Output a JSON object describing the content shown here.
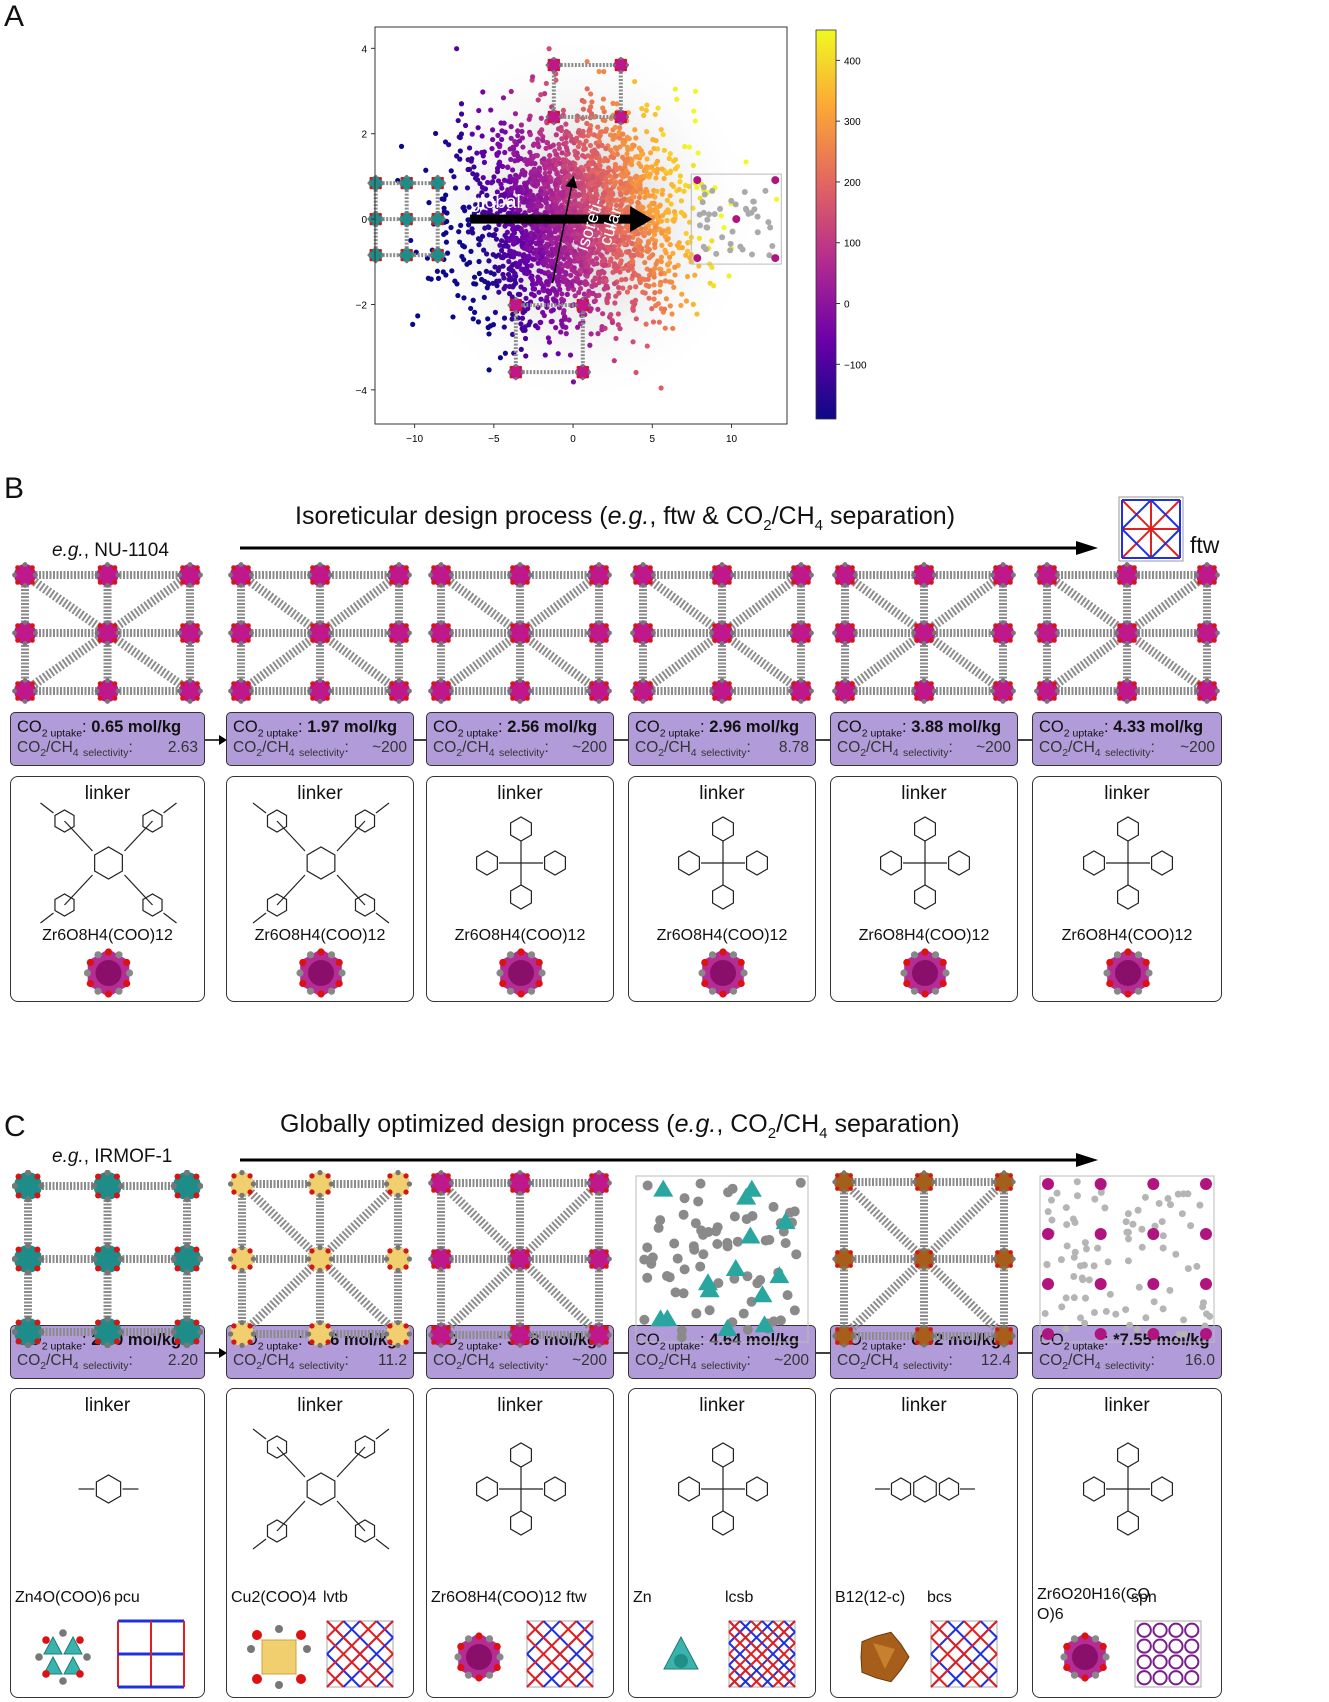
{
  "panel_a": {
    "letter": "A",
    "arrow_global": "global",
    "arrow_iso_1": "isoreti-",
    "arrow_iso_2": "cular",
    "chart_data": {
      "type": "scatter",
      "x_ticks": [
        "−10",
        "−5",
        "0",
        "5",
        "10"
      ],
      "y_ticks": [
        "4",
        "2",
        "0",
        "−2",
        "−4"
      ],
      "xlim": [
        -12.5,
        13.5
      ],
      "ylim": [
        -4.8,
        4.5
      ],
      "colorbar_ticks": [
        "400",
        "300",
        "200",
        "100",
        "0",
        "−100"
      ],
      "colorbar_range": [
        -190,
        450
      ],
      "colormap": "plasma",
      "grid": false
    }
  },
  "panel_b": {
    "letter": "B",
    "title_pre": "Isoreticular design process (",
    "title_eg": "e.g.",
    "title_mid": ", ftw & CO",
    "title_sub1": "2",
    "title_slash": "/CH",
    "title_sub2": "4",
    "title_post": " separation)",
    "example_eg": "e.g.",
    "example_name": ", NU-1104",
    "topology_label": "ftw",
    "boxes": [
      {
        "uptake": "0.65 mol/kg",
        "selectivity": "2.63"
      },
      {
        "uptake": "1.97 mol/kg",
        "selectivity": "~200"
      },
      {
        "uptake": "2.56 mol/kg",
        "selectivity": "~200"
      },
      {
        "uptake": "2.96 mol/kg",
        "selectivity": "8.78"
      },
      {
        "uptake": "3.88 mol/kg",
        "selectivity": "~200"
      },
      {
        "uptake": "4.33 mol/kg",
        "selectivity": "~200"
      }
    ],
    "cards": [
      {
        "linker": "linker",
        "node": "Zr6O8H4(COO)12"
      },
      {
        "linker": "linker",
        "node": "Zr6O8H4(COO)12"
      },
      {
        "linker": "linker",
        "node": "Zr6O8H4(COO)12"
      },
      {
        "linker": "linker",
        "node": "Zr6O8H4(COO)12"
      },
      {
        "linker": "linker",
        "node": "Zr6O8H4(COO)12"
      },
      {
        "linker": "linker",
        "node": "Zr6O8H4(COO)12"
      }
    ]
  },
  "panel_c": {
    "letter": "C",
    "title_pre": "Globally optimized design process (",
    "title_eg": "e.g.",
    "title_mid": ", CO",
    "title_sub1": "2",
    "title_slash": "/CH",
    "title_sub2": "4",
    "title_post": " separation)",
    "example_eg": "e.g.",
    "example_name": ", IRMOF-1",
    "boxes": [
      {
        "uptake": "2.80 mol/kg",
        "selectivity": "2.20"
      },
      {
        "uptake": "3.66 mol/kg",
        "selectivity": "11.2"
      },
      {
        "uptake": "3.88 mol/kg",
        "selectivity": "~200"
      },
      {
        "uptake": "4.64 mol/kg",
        "selectivity": "~200"
      },
      {
        "uptake": "6.02 mol/kg",
        "selectivity": "12.4"
      },
      {
        "uptake": "*7.55 mol/kg",
        "selectivity": "16.0"
      }
    ],
    "cards": [
      {
        "linker": "linker",
        "node": "Zn4O(COO)6",
        "topology": "pcu"
      },
      {
        "linker": "linker",
        "node": "Cu2(COO)4",
        "topology": "lvtb"
      },
      {
        "linker": "linker",
        "node": "Zr6O8H4(COO)12 ftw",
        "topology": ""
      },
      {
        "linker": "linker",
        "node": "Zn",
        "topology": "lcsb"
      },
      {
        "linker": "linker",
        "node": "B12(12-c)",
        "topology": "bcs"
      },
      {
        "linker": "linker",
        "node": "Zr6O20H16(CO O)6",
        "topology": "spn"
      }
    ]
  },
  "labels": {
    "co2": "CO",
    "co2_sub": "2 uptake",
    "sel_pre": "CO",
    "sel_mid": "/CH",
    "sel_sub": "selectivity",
    "colon": ":"
  },
  "colors": {
    "box_fill": "#b19cd9",
    "node_magenta": "#c0178c",
    "teal": "#2aa6a0",
    "copper": "#f2cf6e",
    "boron": "#a65e1a",
    "frame_gray": "#8c8c8c"
  }
}
